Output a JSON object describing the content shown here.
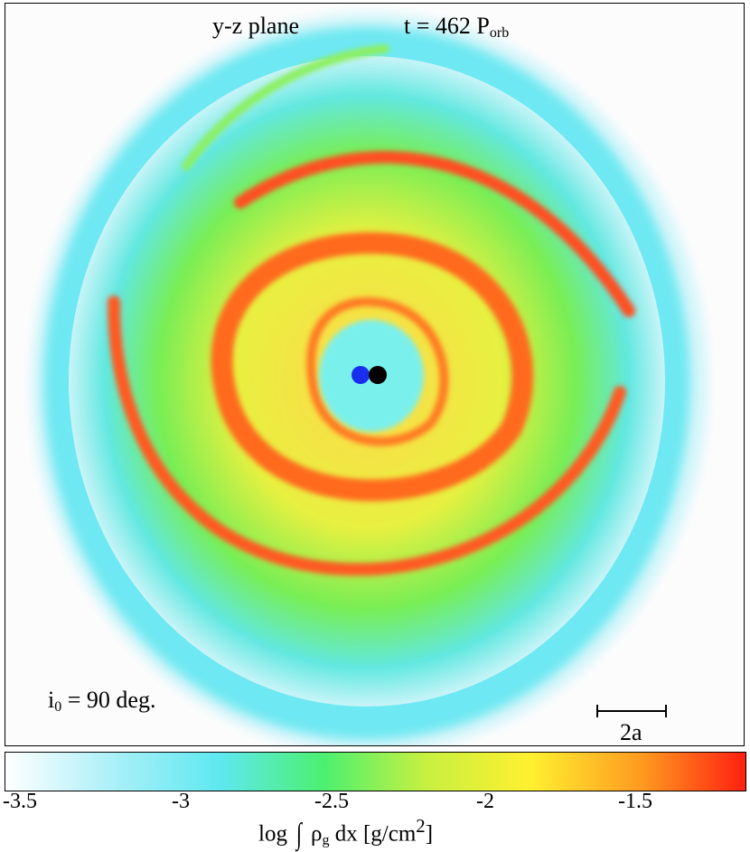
{
  "panel": {
    "plane_label": "y-z plane",
    "time": {
      "prefix": "t = 462 P",
      "sub": "orb"
    },
    "inclination": {
      "prefix": "i",
      "sub": "0",
      "suffix": " = 90 deg."
    },
    "scale_label": "2a"
  },
  "stars": {
    "primary_color": "#1a2ef0",
    "secondary_color": "#000000"
  },
  "colorbar": {
    "ticks": [
      "-3.5",
      "-3",
      "-2.5",
      "-2",
      "-1.5"
    ],
    "title": {
      "prefix": "log",
      "integral": "∫",
      "rho": "ρ",
      "rho_sub": "g",
      "middle": " dx [g/cm",
      "sup": "2",
      "suffix": "]"
    },
    "colors": [
      "#ffffff",
      "#aef0f8",
      "#5ee8f0",
      "#4cf070",
      "#c8f040",
      "#fff030",
      "#ff9a20",
      "#ff2010"
    ]
  }
}
